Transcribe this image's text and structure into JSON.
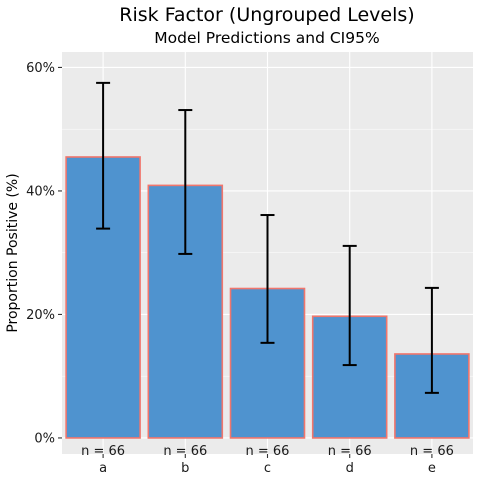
{
  "chart_data": {
    "type": "bar",
    "title": "Risk Factor (Ungrouped Levels)",
    "subtitle": "Model Predictions and CI95%",
    "xlabel": "",
    "ylabel": "Proportion Positive (%)",
    "categories": [
      "a",
      "b",
      "c",
      "d",
      "e"
    ],
    "values": [
      45.5,
      40.9,
      24.2,
      19.7,
      13.6
    ],
    "ci_lower": [
      33.9,
      29.8,
      15.4,
      11.8,
      7.3
    ],
    "ci_upper": [
      57.5,
      53.1,
      36.1,
      31.1,
      24.3
    ],
    "bar_labels": [
      "n = 66",
      "n = 66",
      "n = 66",
      "n = 66",
      "n = 66"
    ],
    "ylim": [
      -2.6,
      62.5
    ],
    "yticks": [
      0,
      20,
      40,
      60
    ],
    "ytick_labels": [
      "0%",
      "20%",
      "40%",
      "60%"
    ],
    "grid": true,
    "colors": {
      "bar_fill": "#4f93cf",
      "bar_stroke": "#f0766d",
      "panel_bg": "#ebebeb",
      "grid": "#ffffff",
      "errorbar": "#000000"
    }
  }
}
